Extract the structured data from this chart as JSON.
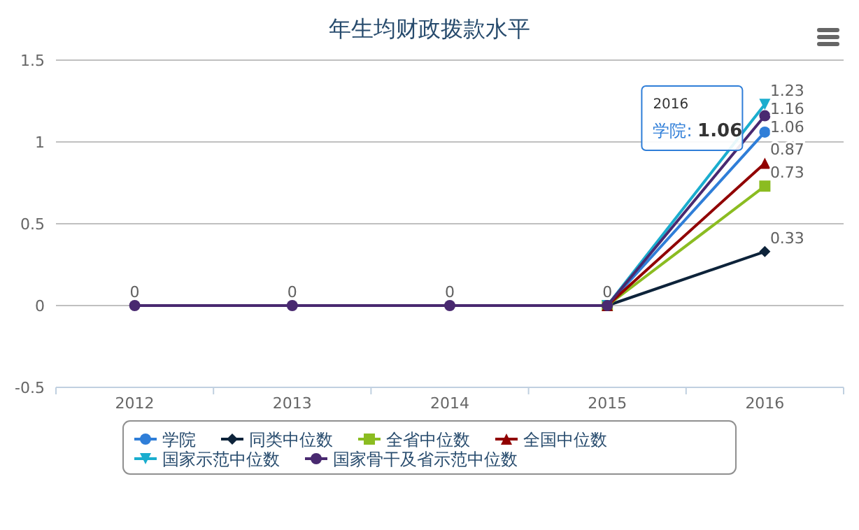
{
  "chart_data": {
    "type": "line",
    "title": "年生均财政拨款水平",
    "categories": [
      "2012",
      "2013",
      "2014",
      "2015",
      "2016"
    ],
    "series": [
      {
        "name": "学院",
        "color": "#2f7ed8",
        "marker": "circle",
        "values": [
          null,
          null,
          null,
          0,
          1.06
        ],
        "value_labels": [
          null,
          null,
          null,
          null,
          "1.06"
        ]
      },
      {
        "name": "同类中位数",
        "color": "#0d233a",
        "marker": "diamond",
        "values": [
          null,
          null,
          null,
          0,
          0.33
        ],
        "value_labels": [
          null,
          null,
          null,
          null,
          "0.33"
        ]
      },
      {
        "name": "全省中位数",
        "color": "#8bbc21",
        "marker": "square",
        "values": [
          null,
          null,
          null,
          0,
          0.73
        ],
        "value_labels": [
          null,
          null,
          null,
          null,
          "0.73"
        ]
      },
      {
        "name": "全国中位数",
        "color": "#910000",
        "marker": "triangle",
        "values": [
          null,
          null,
          null,
          0,
          0.87
        ],
        "value_labels": [
          null,
          null,
          null,
          null,
          "0.87"
        ]
      },
      {
        "name": "国家示范中位数",
        "color": "#1aadce",
        "marker": "triangle-down",
        "values": [
          null,
          null,
          null,
          0,
          1.23
        ],
        "value_labels": [
          null,
          null,
          null,
          null,
          "1.23"
        ]
      },
      {
        "name": "国家骨干及省示范中位数",
        "color": "#492970",
        "marker": "circle",
        "values": [
          0,
          0,
          0,
          0,
          1.16
        ],
        "value_labels": [
          "0",
          "0",
          "0",
          "0",
          "1.16"
        ]
      }
    ],
    "ylim": [
      -0.5,
      1.5
    ],
    "yticks": [
      -0.5,
      0,
      0.5,
      1,
      1.5
    ],
    "grid": "y",
    "legend": "bottom",
    "annotations": [
      {
        "text": "2016\n学院: 1.06",
        "x": "2016",
        "y": 1.06
      }
    ]
  }
}
